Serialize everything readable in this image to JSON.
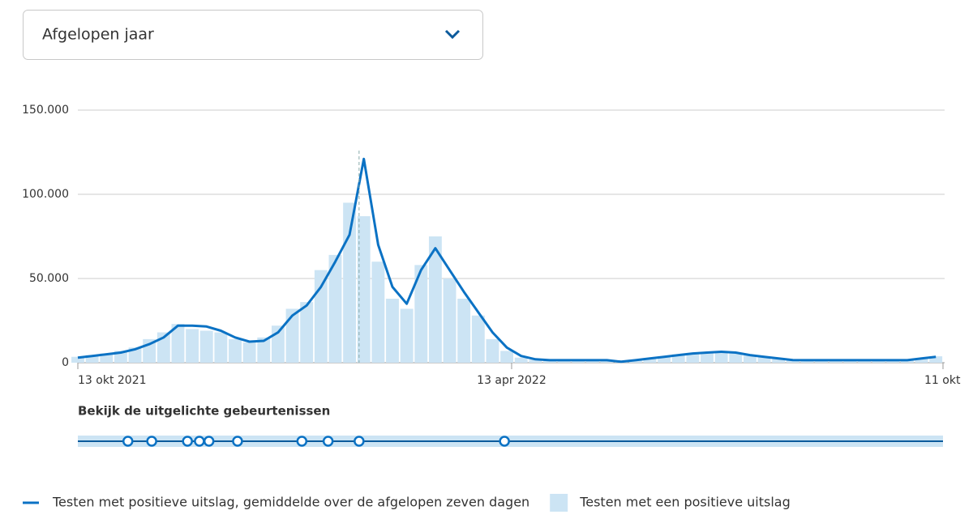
{
  "dropdown": {
    "label": "Afgelopen jaar"
  },
  "chart_data": {
    "type": "line",
    "x": [
      0,
      6,
      12,
      18,
      24,
      30,
      36,
      42,
      48,
      54,
      60,
      66,
      72,
      78,
      84,
      90,
      96,
      102,
      108,
      114,
      120,
      126,
      132,
      138,
      144,
      150,
      156,
      162,
      168,
      174,
      180,
      186,
      192,
      198,
      204,
      210,
      216,
      222,
      228,
      234,
      240,
      246,
      252,
      258,
      264,
      270,
      276,
      282,
      288,
      294,
      300,
      306,
      312,
      318,
      324,
      330,
      336,
      342,
      348,
      354,
      360
    ],
    "series": [
      {
        "name": "Testen met positieve uitslag, gemiddelde over de afgelopen zeven dagen",
        "type": "line",
        "color": "#0b72c4",
        "values": [
          3000,
          4000,
          5000,
          6000,
          8000,
          11000,
          15000,
          22000,
          22000,
          21500,
          19000,
          15000,
          12500,
          13000,
          18000,
          28000,
          34000,
          45000,
          60000,
          76000,
          121000,
          70000,
          45000,
          35000,
          55000,
          68000,
          55000,
          42000,
          30000,
          18000,
          9000,
          4000,
          2000,
          1500,
          1500,
          1500,
          1500,
          1500,
          600,
          1500,
          2500,
          3500,
          4500,
          5500,
          6000,
          6500,
          6000,
          4500,
          3500,
          2500,
          1600,
          1500,
          1500,
          1500,
          1500,
          1500,
          1500,
          1500,
          1500,
          2500,
          3500
        ]
      },
      {
        "name": "Testen met een positieve uitslag",
        "type": "bar",
        "color": "#cce4f4",
        "values": [
          3500,
          4500,
          5500,
          7000,
          9000,
          14000,
          18000,
          23000,
          20000,
          19000,
          18000,
          14000,
          12000,
          15000,
          22000,
          32000,
          36000,
          55000,
          64000,
          95000,
          87000,
          60000,
          38000,
          32000,
          58000,
          75000,
          50000,
          38000,
          28000,
          14000,
          7000,
          3000,
          1800,
          1400,
          1500,
          1400,
          1300,
          1300,
          700,
          1600,
          2800,
          3800,
          5000,
          5800,
          6200,
          6800,
          5500,
          4200,
          3200,
          2300,
          1500,
          1400,
          1500,
          1500,
          1400,
          1500,
          1500,
          1400,
          1500,
          2800,
          3800
        ]
      }
    ],
    "xlim": [
      0,
      363
    ],
    "xticks": [
      {
        "value": 0,
        "label": "13 okt 2021"
      },
      {
        "value": 182,
        "label": "13 apr 2022"
      },
      {
        "value": 363,
        "label": "11 okt"
      }
    ],
    "ylim": [
      0,
      150000
    ],
    "yticks": [
      0,
      {
        "value": 50000,
        "label": "50.000"
      },
      {
        "value": 100000,
        "label": "100.000"
      },
      {
        "value": 150000,
        "label": "150.000"
      }
    ],
    "grid": true,
    "highlight_x": 118,
    "events": {
      "title": "Bekijk de uitgelichte gebeurtenissen",
      "x": [
        21,
        31,
        46,
        51,
        55,
        67,
        94,
        105,
        118,
        179
      ]
    }
  }
}
